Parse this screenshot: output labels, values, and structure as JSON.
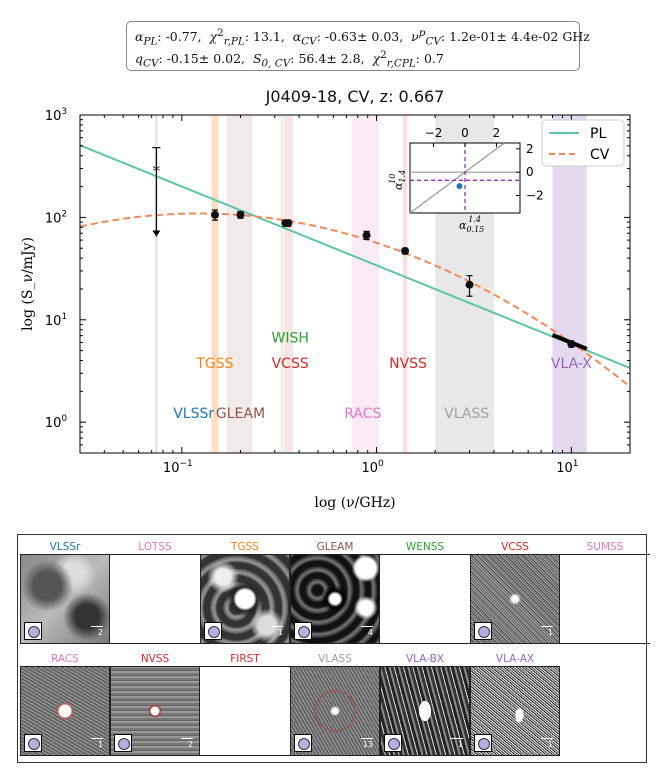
{
  "params": {
    "alpha_pl_label": "α",
    "alpha_pl_sub": "PL",
    "alpha_pl": "-0.77",
    "chi_pl_label": "χ",
    "chi_pl_sup": "2",
    "chi_pl_sub": "r,PL",
    "chi_pl": "13.1",
    "alpha_cv_label": "α",
    "alpha_cv_sub": "CV",
    "alpha_cv": "-0.63± 0.03",
    "nu_cv_label": "ν",
    "nu_cv_sup": "p",
    "nu_cv_sub": "CV",
    "nu_cv": "1.2e-01± 4.4e-02 GHz",
    "q_cv_label": "q",
    "q_cv_sub": "CV",
    "q_cv": "-0.15± 0.02",
    "s0_label": "S",
    "s0_sub": "0, CV",
    "s0": "56.4± 2.8",
    "chi_cpl_label": "χ",
    "chi_cpl_sup": "2",
    "chi_cpl_sub": "r,CPL",
    "chi_cpl": "0.7"
  },
  "colors": {
    "pl": "#5ec4a4",
    "cv": "#f08a5d",
    "vlssr": "#1f77b4",
    "tgss": "#ff7f0e",
    "gleam": "#8c564b",
    "wish": "#2ca02c",
    "vcss": "#d62728",
    "nvss": "#d62728",
    "racs": "#e377c2",
    "vlass": "#7f7f7f",
    "vlax": "#9467bd",
    "lotss": "#e377c2",
    "wenss": "#2ca02c",
    "sumss": "#e377c2",
    "first": "#d62728",
    "inset_dash": "#9b30b0",
    "inset_point": "#1f77b4"
  },
  "chart_data": {
    "type": "scatter",
    "title": "J0409-18, CV, z: 0.667",
    "xlabel": "log (ν/GHz)",
    "ylabel": "log (S_ν/mJy)",
    "xscale": "log",
    "yscale": "log",
    "xlim": [
      0.03,
      20
    ],
    "ylim": [
      0.5,
      1000
    ],
    "x_ticks": [
      {
        "value": 0.1,
        "label": "10",
        "sup": "−1"
      },
      {
        "value": 1,
        "label": "10",
        "sup": "0"
      },
      {
        "value": 10,
        "label": "10",
        "sup": "1"
      }
    ],
    "y_ticks": [
      {
        "value": 1,
        "label": "10",
        "sup": "0"
      },
      {
        "value": 10,
        "label": "10",
        "sup": "1"
      },
      {
        "value": 100,
        "label": "10",
        "sup": "2"
      },
      {
        "value": 1000,
        "label": "10",
        "sup": "3"
      }
    ],
    "legend": {
      "position": "top-right",
      "entries": [
        "PL",
        "CV"
      ]
    },
    "models": {
      "pl": {
        "name": "PL",
        "alpha": -0.77,
        "s_at_1ghz": 34.0
      },
      "cv": {
        "name": "CV",
        "s0": 56.4,
        "alpha": -0.63,
        "q": -0.15
      }
    },
    "detections": [
      {
        "nu": 0.148,
        "s": 106,
        "err": 12
      },
      {
        "nu": 0.2,
        "s": 106,
        "err": 8
      },
      {
        "nu": 0.34,
        "s": 88,
        "err": 6
      },
      {
        "nu": 0.352,
        "s": 88,
        "err": 6
      },
      {
        "nu": 0.888,
        "s": 67,
        "err": 6
      },
      {
        "nu": 1.4,
        "s": 47,
        "err": 3
      },
      {
        "nu": 3.0,
        "s": 22,
        "err": 5
      },
      {
        "nu": 10.0,
        "s": 5.8,
        "err": 0.4
      }
    ],
    "upper_limit": {
      "nu": 0.074,
      "s": 290,
      "err_hi": 480,
      "err_lo": 65
    },
    "vla_segment": {
      "nu_start": 8.0,
      "s_start": 7.1,
      "nu_end": 12.0,
      "s_end": 5.2
    },
    "bands": [
      {
        "survey": "VLSSr",
        "nu_lo": 0.073,
        "nu_hi": 0.075,
        "color": "#d0d0d0",
        "opacity": 0.6
      },
      {
        "survey": "TGSS",
        "nu_lo": 0.142,
        "nu_hi": 0.154,
        "color": "#ff7f0e",
        "opacity": 0.25
      },
      {
        "survey": "GLEAM",
        "nu_lo": 0.17,
        "nu_hi": 0.23,
        "color": "#8c564b",
        "opacity": 0.12
      },
      {
        "survey": "WISH",
        "nu_lo": 0.322,
        "nu_hi": 0.33,
        "color": "#2ca02c",
        "opacity": 0.15
      },
      {
        "survey": "VCSS",
        "nu_lo": 0.333,
        "nu_hi": 0.372,
        "color": "#d62728",
        "opacity": 0.12
      },
      {
        "survey": "RACS",
        "nu_lo": 0.744,
        "nu_hi": 1.032,
        "color": "#e377c2",
        "opacity": 0.15
      },
      {
        "survey": "NVSS",
        "nu_lo": 1.365,
        "nu_hi": 1.435,
        "color": "#d62728",
        "opacity": 0.15
      },
      {
        "survey": "VLASS",
        "nu_lo": 2.0,
        "nu_hi": 4.0,
        "color": "#7f7f7f",
        "opacity": 0.18
      },
      {
        "survey": "VLA-X",
        "nu_lo": 8.0,
        "nu_hi": 12.0,
        "color": "#9467bd",
        "opacity": 0.25
      }
    ],
    "survey_labels": [
      {
        "text": "VLSSr",
        "nu": 0.115,
        "s": 1.1,
        "color": "#1f77b4"
      },
      {
        "text": "TGSS",
        "nu": 0.148,
        "s": 3.4,
        "color": "#ff7f0e"
      },
      {
        "text": "GLEAM",
        "nu": 0.2,
        "s": 1.1,
        "color": "#8c564b"
      },
      {
        "text": "WISH",
        "nu": 0.36,
        "s": 6.0,
        "color": "#2ca02c"
      },
      {
        "text": "VCSS",
        "nu": 0.36,
        "s": 3.4,
        "color": "#d62728"
      },
      {
        "text": "NVSS",
        "nu": 1.45,
        "s": 3.4,
        "color": "#d62728"
      },
      {
        "text": "RACS",
        "nu": 0.85,
        "s": 1.1,
        "color": "#e377c2"
      },
      {
        "text": "VLASS",
        "nu": 2.9,
        "s": 1.1,
        "color": "#a0a0a0"
      },
      {
        "text": "VLA-X",
        "nu": 10.0,
        "s": 3.4,
        "color": "#9467bd"
      }
    ],
    "inset": {
      "xlabel": "α",
      "xlabel_sub": "0.15",
      "xlabel_sup": "1.4",
      "ylabel": "α",
      "ylabel_sub": "1.4",
      "ylabel_sup": "10",
      "xlim": [
        -3.5,
        3.5
      ],
      "ylim": [
        -3.5,
        2.5
      ],
      "x_ticks": [
        -2,
        0,
        2
      ],
      "y_ticks": [
        -2,
        0,
        2
      ],
      "x_tick_labels": [
        "−2",
        "0",
        "2"
      ],
      "y_tick_labels": [
        "−2",
        "0",
        "2"
      ],
      "point": {
        "x": -0.35,
        "y": -1.2
      },
      "hline": -0.7,
      "vline": 0.0
    }
  },
  "cutouts": {
    "row1": [
      {
        "survey": "VLSSr",
        "color": "#1f77b4",
        "scale": "2",
        "empty": false,
        "style": "vlssr"
      },
      {
        "survey": "LOTSS",
        "color": "#e377c2",
        "scale": "",
        "empty": true,
        "style": "none"
      },
      {
        "survey": "TGSS",
        "color": "#ff7f0e",
        "scale": "1",
        "empty": false,
        "style": "tgss"
      },
      {
        "survey": "GLEAM",
        "color": "#8c564b",
        "scale": "4",
        "empty": false,
        "style": "gleam"
      },
      {
        "survey": "WENSS",
        "color": "#2ca02c",
        "scale": "",
        "empty": true,
        "style": "none"
      },
      {
        "survey": "VCSS",
        "color": "#d62728",
        "scale": "1",
        "empty": false,
        "style": "vcss"
      },
      {
        "survey": "SUMSS",
        "color": "#e377c2",
        "scale": "",
        "empty": true,
        "style": "none"
      }
    ],
    "row2": [
      {
        "survey": "RACS",
        "color": "#e377c2",
        "scale": "1",
        "empty": false,
        "style": "racs"
      },
      {
        "survey": "NVSS",
        "color": "#d62728",
        "scale": "2",
        "empty": false,
        "style": "nvss"
      },
      {
        "survey": "FIRST",
        "color": "#d62728",
        "scale": "",
        "empty": true,
        "style": "none"
      },
      {
        "survey": "VLASS",
        "color": "#a0a0a0",
        "scale": "13",
        "empty": false,
        "style": "vlass"
      },
      {
        "survey": "VLA-BX",
        "color": "#9467bd",
        "scale": "1",
        "empty": false,
        "style": "vlabx"
      },
      {
        "survey": "VLA-AX",
        "color": "#9467bd",
        "scale": "1",
        "empty": false,
        "style": "vlaax"
      }
    ]
  }
}
